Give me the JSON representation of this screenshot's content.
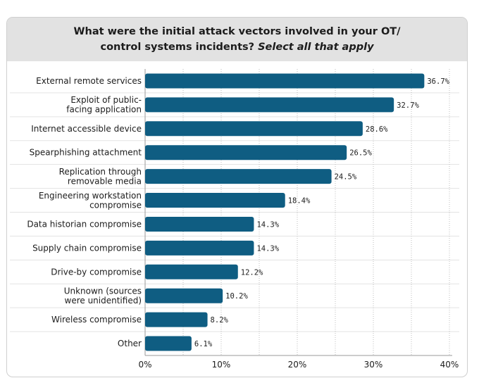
{
  "header": {
    "title_line1": "What were the initial attack vectors involved in your OT/",
    "title_line2_main": "control systems incidents?",
    "title_line2_italic": "Select all that apply"
  },
  "colors": {
    "bar": "#0f5d82",
    "grid": "#bdbdbd",
    "header_bg": "#e2e2e2"
  },
  "chart_data": {
    "type": "bar",
    "orientation": "horizontal",
    "title": "What were the initial attack vectors involved in your OT/ control systems incidents? Select all that apply",
    "categories": [
      [
        "External remote services"
      ],
      [
        "Exploit of public-",
        "facing application"
      ],
      [
        "Internet accessible device"
      ],
      [
        "Spearphishing attachment"
      ],
      [
        "Replication through",
        "removable media"
      ],
      [
        "Engineering workstation",
        "compromise"
      ],
      [
        "Data historian compromise"
      ],
      [
        "Supply chain compromise"
      ],
      [
        "Drive-by compromise"
      ],
      [
        "Unknown (sources",
        "were unidentified)"
      ],
      [
        "Wireless compromise"
      ],
      [
        "Other"
      ]
    ],
    "values": [
      36.7,
      32.7,
      28.6,
      26.5,
      24.5,
      18.4,
      14.3,
      14.3,
      12.2,
      10.2,
      8.2,
      6.1
    ],
    "value_labels": [
      "36.7%",
      "32.7%",
      "28.6%",
      "26.5%",
      "24.5%",
      "18.4%",
      "14.3%",
      "14.3%",
      "12.2%",
      "10.2%",
      "8.2%",
      "6.1%"
    ],
    "xlim": [
      0,
      40
    ],
    "xticks": [
      0,
      10,
      20,
      30,
      40
    ],
    "xtick_labels": [
      "0%",
      "10%",
      "20%",
      "30%",
      "40%"
    ],
    "grid": true
  }
}
